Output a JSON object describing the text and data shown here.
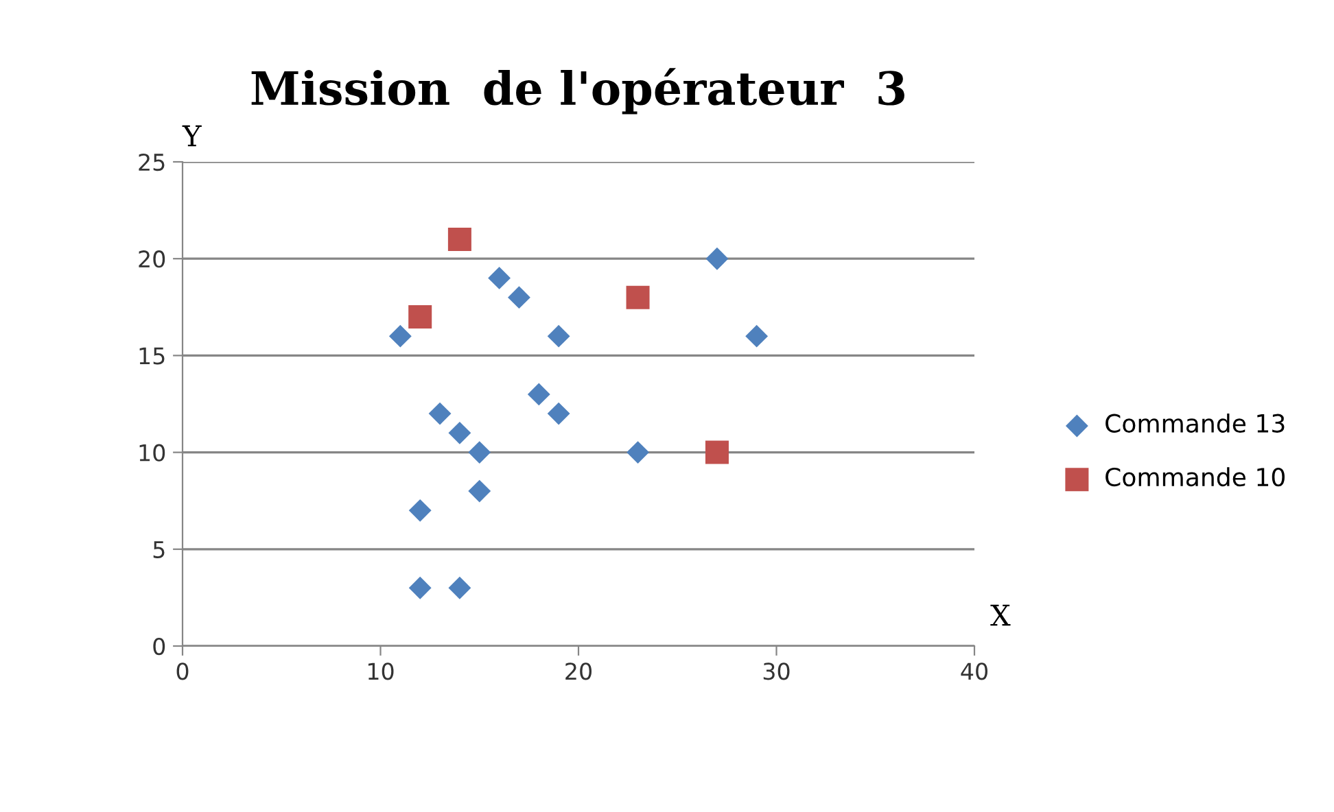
{
  "chart_data": {
    "type": "scatter",
    "title": "Mission  de l'opérateur  3",
    "xlabel": "X",
    "ylabel": "Y",
    "xlim": [
      0,
      40
    ],
    "xticks": [
      0,
      10,
      20,
      30,
      40
    ],
    "ylim": [
      0,
      25
    ],
    "yticks": [
      0,
      5,
      10,
      15,
      20,
      25
    ],
    "grid": "y",
    "legend": "right",
    "series": [
      {
        "name": "Commande 13",
        "color": "#4f81bd",
        "marker": "diamond",
        "x": [
          11,
          12,
          12,
          13,
          14,
          14,
          15,
          15,
          16,
          17,
          18,
          19,
          19,
          23,
          27,
          29
        ],
        "values": [
          16,
          7,
          3,
          12,
          11,
          3,
          10,
          8,
          19,
          18,
          13,
          16,
          12,
          10,
          20,
          16
        ]
      },
      {
        "name": "Commande 10",
        "color": "#c0504d",
        "marker": "square",
        "x": [
          12,
          14,
          23,
          27
        ],
        "values": [
          17,
          21,
          18,
          10
        ]
      }
    ]
  }
}
